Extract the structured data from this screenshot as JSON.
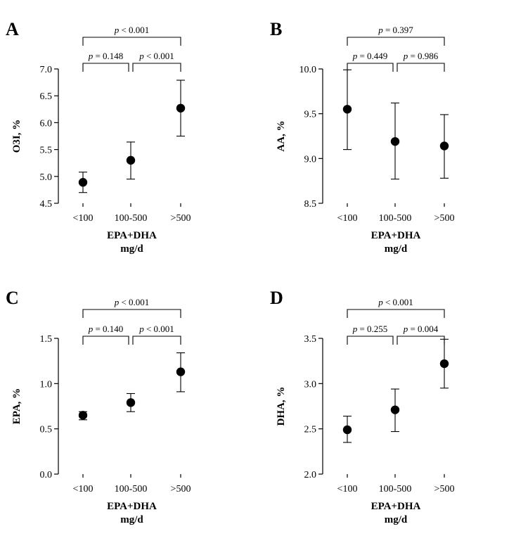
{
  "chart_data": [
    {
      "panel": "A",
      "type": "scatter",
      "ylabel": "O3I, %",
      "xlabel": [
        "EPA+DHA",
        "mg/d"
      ],
      "categories": [
        "<100",
        "100-500",
        ">500"
      ],
      "means": [
        4.89,
        5.3,
        6.27
      ],
      "lower": [
        4.7,
        4.95,
        5.75
      ],
      "upper": [
        5.08,
        5.64,
        6.79
      ],
      "ylim": [
        4.5,
        7.0
      ],
      "yticks": [
        "4.5",
        "5.0",
        "5.5",
        "6.0",
        "6.5",
        "7.0"
      ],
      "comparisons": [
        {
          "from": 0,
          "to": 1,
          "p": "p = 0.148"
        },
        {
          "from": 1,
          "to": 2,
          "p": "p < 0.001"
        },
        {
          "from": 0,
          "to": 2,
          "p": "p < 0.001"
        }
      ]
    },
    {
      "panel": "B",
      "type": "scatter",
      "ylabel": "AA, %",
      "xlabel": [
        "EPA+DHA",
        "mg/d"
      ],
      "categories": [
        "<100",
        "100-500",
        ">500"
      ],
      "means": [
        9.55,
        9.19,
        9.14
      ],
      "lower": [
        9.1,
        8.77,
        8.78
      ],
      "upper": [
        9.99,
        9.62,
        9.49
      ],
      "ylim": [
        8.5,
        10.0
      ],
      "yticks": [
        "8.5",
        "9.0",
        "9.5",
        "10.0"
      ],
      "comparisons": [
        {
          "from": 0,
          "to": 1,
          "p": "p = 0.449"
        },
        {
          "from": 1,
          "to": 2,
          "p": "p = 0.986"
        },
        {
          "from": 0,
          "to": 2,
          "p": "p = 0.397"
        }
      ]
    },
    {
      "panel": "C",
      "type": "scatter",
      "ylabel": "EPA, %",
      "xlabel": [
        "EPA+DHA",
        "mg/d"
      ],
      "categories": [
        "<100",
        "100-500",
        ">500"
      ],
      "means": [
        0.65,
        0.79,
        1.13
      ],
      "lower": [
        0.6,
        0.69,
        0.91
      ],
      "upper": [
        0.69,
        0.89,
        1.34
      ],
      "ylim": [
        0.0,
        1.5
      ],
      "yticks": [
        "0.0",
        "0.5",
        "1.0",
        "1.5"
      ],
      "comparisons": [
        {
          "from": 0,
          "to": 1,
          "p": "p = 0.140"
        },
        {
          "from": 1,
          "to": 2,
          "p": "p < 0.001"
        },
        {
          "from": 0,
          "to": 2,
          "p": "p < 0.001"
        }
      ]
    },
    {
      "panel": "D",
      "type": "scatter",
      "ylabel": "DHA, %",
      "xlabel": [
        "EPA+DHA",
        "mg/d"
      ],
      "categories": [
        "<100",
        "100-500",
        ">500"
      ],
      "means": [
        2.49,
        2.71,
        3.22
      ],
      "lower": [
        2.35,
        2.47,
        2.95
      ],
      "upper": [
        2.64,
        2.94,
        3.49
      ],
      "ylim": [
        2.0,
        3.5
      ],
      "yticks": [
        "2.0",
        "2.5",
        "3.0",
        "3.5"
      ],
      "comparisons": [
        {
          "from": 0,
          "to": 1,
          "p": "p = 0.255"
        },
        {
          "from": 1,
          "to": 2,
          "p": "p = 0.004"
        },
        {
          "from": 0,
          "to": 2,
          "p": "p < 0.001"
        }
      ]
    }
  ],
  "colors": {
    "ink": "#000000",
    "background": "#ffffff"
  }
}
